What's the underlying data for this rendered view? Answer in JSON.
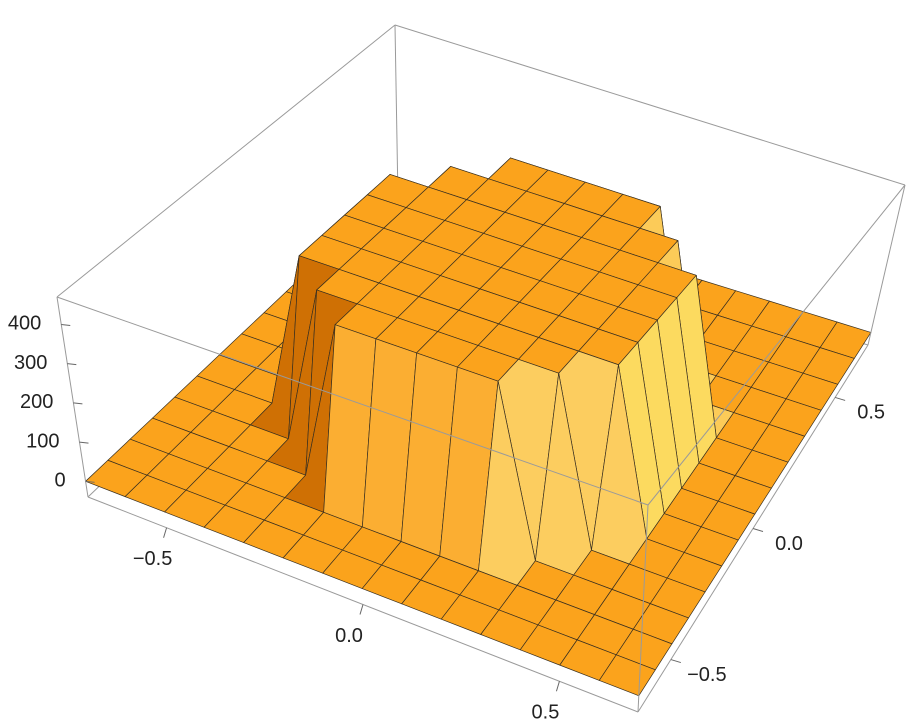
{
  "chart_data": {
    "type": "surface3d",
    "x": [
      -0.7,
      -0.6,
      -0.5,
      -0.4,
      -0.3,
      -0.2,
      -0.1,
      0,
      0.1,
      0.2,
      0.3,
      0.4,
      0.5,
      0.6,
      0.7
    ],
    "y": [
      -0.7,
      -0.6,
      -0.5,
      -0.4,
      -0.3,
      -0.2,
      -0.1,
      0,
      0.1,
      0.2,
      0.3,
      0.4,
      0.5,
      0.6,
      0.7
    ],
    "z": [
      [
        0,
        0,
        0,
        0,
        0,
        0,
        0,
        0,
        0,
        0,
        0,
        0,
        0,
        0,
        0
      ],
      [
        0,
        0,
        0,
        0,
        0,
        0,
        0,
        0,
        0,
        0,
        0,
        0,
        0,
        0,
        0
      ],
      [
        0,
        0,
        0,
        0,
        0,
        0,
        0,
        0,
        0,
        0,
        0,
        0,
        0,
        0,
        0
      ],
      [
        0,
        0,
        0,
        0,
        0,
        430,
        430,
        430,
        430,
        430,
        0,
        0,
        0,
        0,
        0
      ],
      [
        0,
        0,
        0,
        0,
        430,
        430,
        430,
        430,
        430,
        430,
        430,
        0,
        0,
        0,
        0
      ],
      [
        0,
        0,
        0,
        430,
        430,
        430,
        430,
        430,
        430,
        430,
        430,
        430,
        0,
        0,
        0
      ],
      [
        0,
        0,
        0,
        430,
        430,
        430,
        430,
        430,
        430,
        430,
        430,
        430,
        0,
        0,
        0
      ],
      [
        0,
        0,
        0,
        430,
        430,
        430,
        430,
        430,
        430,
        430,
        430,
        430,
        0,
        0,
        0
      ],
      [
        0,
        0,
        0,
        430,
        430,
        430,
        430,
        430,
        430,
        430,
        430,
        430,
        0,
        0,
        0
      ],
      [
        0,
        0,
        0,
        430,
        430,
        430,
        430,
        430,
        430,
        430,
        430,
        430,
        0,
        0,
        0
      ],
      [
        0,
        0,
        0,
        0,
        430,
        430,
        430,
        430,
        430,
        430,
        430,
        0,
        0,
        0,
        0
      ],
      [
        0,
        0,
        0,
        0,
        0,
        430,
        430,
        430,
        430,
        430,
        0,
        0,
        0,
        0,
        0
      ],
      [
        0,
        0,
        0,
        0,
        0,
        0,
        0,
        0,
        0,
        0,
        0,
        0,
        0,
        0,
        0
      ],
      [
        0,
        0,
        0,
        0,
        0,
        0,
        0,
        0,
        0,
        0,
        0,
        0,
        0,
        0,
        0
      ],
      [
        0,
        0,
        0,
        0,
        0,
        0,
        0,
        0,
        0,
        0,
        0,
        0,
        0,
        0,
        0
      ]
    ],
    "xlim": [
      -0.7,
      0.7
    ],
    "ylim": [
      -0.7,
      0.7
    ],
    "zlim": [
      -40,
      470
    ],
    "xticks": [
      {
        "value": -0.5,
        "label": "−0.5"
      },
      {
        "value": 0,
        "label": "0.0"
      },
      0.5
    ],
    "yticks": [
      {
        "value": -0.5,
        "label": "−0.5"
      },
      {
        "value": 0,
        "label": "0.0"
      },
      0.5
    ],
    "zticks": [
      0,
      100,
      200,
      300,
      400
    ],
    "color": "#fba31c",
    "mesh": true
  }
}
